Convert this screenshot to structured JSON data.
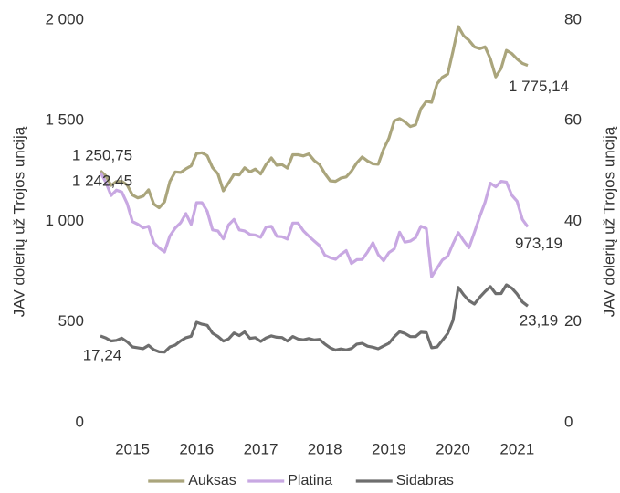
{
  "chart_data": {
    "type": "line",
    "y_label": "JAV dolerių už Trojos unciją",
    "y2_label": "JAV dolerių už Trojos unciją",
    "categories": [
      null,
      null,
      null,
      null,
      null,
      null,
      "2015",
      null,
      null,
      null,
      null,
      null,
      null,
      null,
      null,
      null,
      null,
      null,
      "2016",
      null,
      null,
      null,
      null,
      null,
      null,
      null,
      null,
      null,
      null,
      null,
      "2017",
      null,
      null,
      null,
      null,
      null,
      null,
      null,
      null,
      null,
      null,
      null,
      "2018",
      null,
      null,
      null,
      null,
      null,
      null,
      null,
      null,
      null,
      null,
      null,
      "2019",
      null,
      null,
      null,
      null,
      null,
      null,
      null,
      null,
      null,
      null,
      null,
      "2020",
      null,
      null,
      null,
      null,
      null,
      null,
      null,
      null,
      null,
      null,
      null,
      "2021",
      null,
      null
    ],
    "ylim": [
      0,
      2000
    ],
    "yticks": [
      0,
      500,
      {
        "value": 1000,
        "label": "1 000"
      },
      {
        "value": 1500,
        "label": "1 500"
      },
      {
        "value": 2000,
        "label": "2 000"
      }
    ],
    "y2lim": [
      0,
      80
    ],
    "y2ticks": [
      0,
      20,
      40,
      60,
      80
    ],
    "grid": false,
    "legend": "bottom",
    "series": [
      {
        "name": "Auksas",
        "color": "#aaa57c",
        "values": [
          1250.75,
          1227,
          1179,
          1198,
          1199,
          1181,
          1131,
          1117,
          1125,
          1157,
          1086,
          1068,
          1097,
          1199,
          1246,
          1243,
          1261,
          1276,
          1337,
          1341,
          1326,
          1267,
          1236,
          1152,
          1192,
          1234,
          1231,
          1266,
          1246,
          1260,
          1236,
          1283,
          1315,
          1279,
          1282,
          1265,
          1331,
          1331,
          1325,
          1335,
          1303,
          1282,
          1238,
          1202,
          1199,
          1215,
          1221,
          1250,
          1291,
          1320,
          1300,
          1286,
          1284,
          1359,
          1413,
          1500,
          1511,
          1495,
          1471,
          1480,
          1560,
          1597,
          1592,
          1683,
          1716,
          1732,
          1846,
          1968,
          1922,
          1900,
          1867,
          1858,
          1867,
          1808,
          1718,
          1760,
          1850,
          1834,
          1807,
          1785,
          1775.14
        ],
        "value_labels": [
          "1 250,75",
          null,
          null,
          null,
          null,
          null,
          null,
          null,
          null,
          null,
          null,
          null,
          null,
          null,
          null,
          null,
          null,
          null,
          null,
          null,
          null,
          null,
          null,
          null,
          null,
          null,
          null,
          null,
          null,
          null,
          null,
          null,
          null,
          null,
          null,
          null,
          null,
          null,
          null,
          null,
          null,
          null,
          null,
          null,
          null,
          null,
          null,
          null,
          null,
          null,
          null,
          null,
          null,
          null,
          null,
          null,
          null,
          null,
          null,
          null,
          null,
          null,
          null,
          null,
          null,
          null,
          null,
          null,
          null,
          null,
          null,
          null,
          null,
          null,
          null,
          null,
          null,
          null,
          null,
          null,
          "1 775,14"
        ]
      },
      {
        "name": "Platina",
        "color": "#c8a8e2",
        "values": [
          1242.45,
          1196,
          1129,
          1155,
          1146,
          1089,
          999,
          986,
          968,
          976,
          894,
          868,
          848,
          928,
          967,
          993,
          1039,
          985,
          1093,
          1093,
          1050,
          958,
          953,
          914,
          983,
          1010,
          958,
          953,
          935,
          932,
          921,
          972,
          976,
          926,
          924,
          912,
          992,
          992,
          953,
          927,
          903,
          880,
          832,
          820,
          812,
          836,
          855,
          791,
          810,
          811,
          848,
          894,
          835,
          805,
          845,
          863,
          946,
          897,
          902,
          919,
          976,
          964,
          725,
          767,
          808,
          827,
          889,
          944,
          904,
          869,
          945,
          1024,
          1095,
          1190,
          1172,
          1199,
          1195,
          1130,
          1100,
          1010,
          973.19
        ],
        "value_labels": [
          "1 242,45",
          null,
          null,
          null,
          null,
          null,
          null,
          null,
          null,
          null,
          null,
          null,
          null,
          null,
          null,
          null,
          null,
          null,
          null,
          null,
          null,
          null,
          null,
          null,
          null,
          null,
          null,
          null,
          null,
          null,
          null,
          null,
          null,
          null,
          null,
          null,
          null,
          null,
          null,
          null,
          null,
          null,
          null,
          null,
          null,
          null,
          null,
          null,
          null,
          null,
          null,
          null,
          null,
          null,
          null,
          null,
          null,
          null,
          null,
          null,
          null,
          null,
          null,
          null,
          null,
          null,
          null,
          null,
          null,
          null,
          null,
          null,
          null,
          null,
          null,
          null,
          null,
          null,
          null,
          null,
          "973,19"
        ]
      },
      {
        "name": "Sidabras",
        "color": "#6e6e6e",
        "axis": "y2",
        "values": [
          17.24,
          16.85,
          16.23,
          16.37,
          16.79,
          16.07,
          15.05,
          14.89,
          14.71,
          15.37,
          14.49,
          14.07,
          14.03,
          15.06,
          15.42,
          16.25,
          16.89,
          17.18,
          19.95,
          19.58,
          19.35,
          17.77,
          17.15,
          16.22,
          16.66,
          17.83,
          17.3,
          18.04,
          16.76,
          16.91,
          16.14,
          16.85,
          17.25,
          16.98,
          16.92,
          16.22,
          17.13,
          16.63,
          16.48,
          16.73,
          16.45,
          16.57,
          15.64,
          14.88,
          14.43,
          14.65,
          14.45,
          14.74,
          15.61,
          15.77,
          15.21,
          15.01,
          14.7,
          15.26,
          15.78,
          17.07,
          18.07,
          17.74,
          17.12,
          17.11,
          17.97,
          17.88,
          14.9,
          15.04,
          16.34,
          17.73,
          20.33,
          26.88,
          25.42,
          24.24,
          23.58,
          24.93,
          26.06,
          27.05,
          25.65,
          25.67,
          27.39,
          26.74,
          25.56,
          24.0,
          23.19
        ],
        "value_labels": [
          "17,24",
          null,
          null,
          null,
          null,
          null,
          null,
          null,
          null,
          null,
          null,
          null,
          null,
          null,
          null,
          null,
          null,
          null,
          null,
          null,
          null,
          null,
          null,
          null,
          null,
          null,
          null,
          null,
          null,
          null,
          null,
          null,
          null,
          null,
          null,
          null,
          null,
          null,
          null,
          null,
          null,
          null,
          null,
          null,
          null,
          null,
          null,
          null,
          null,
          null,
          null,
          null,
          null,
          null,
          null,
          null,
          null,
          null,
          null,
          null,
          null,
          null,
          null,
          null,
          null,
          null,
          null,
          null,
          null,
          null,
          null,
          null,
          null,
          null,
          null,
          null,
          null,
          null,
          null,
          null,
          "23,19"
        ]
      }
    ]
  }
}
